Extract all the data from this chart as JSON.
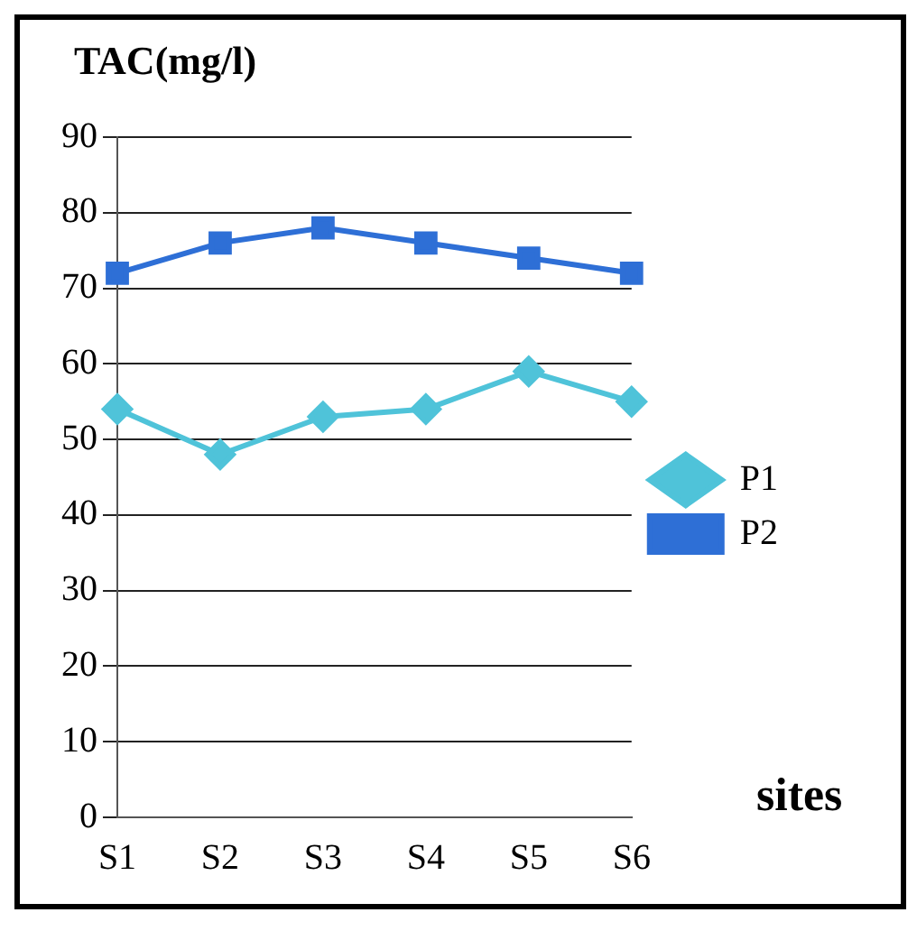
{
  "chart_data": {
    "type": "line",
    "ylabel": "TAC(mg/l)",
    "xlabel": "sites",
    "categories": [
      "S1",
      "S2",
      "S3",
      "S4",
      "S5",
      "S6"
    ],
    "series": [
      {
        "name": "P1",
        "color": "#4fc3d9",
        "marker": "diamond",
        "values": [
          54,
          48,
          53,
          54,
          59,
          55
        ]
      },
      {
        "name": "P2",
        "color": "#2e6fd6",
        "marker": "square",
        "values": [
          72,
          76,
          78,
          76,
          74,
          72
        ]
      }
    ],
    "ylim": [
      0,
      90
    ],
    "yticks": [
      0,
      10,
      20,
      30,
      40,
      50,
      60,
      70,
      80,
      90
    ],
    "grid": "y",
    "legend": "right"
  }
}
